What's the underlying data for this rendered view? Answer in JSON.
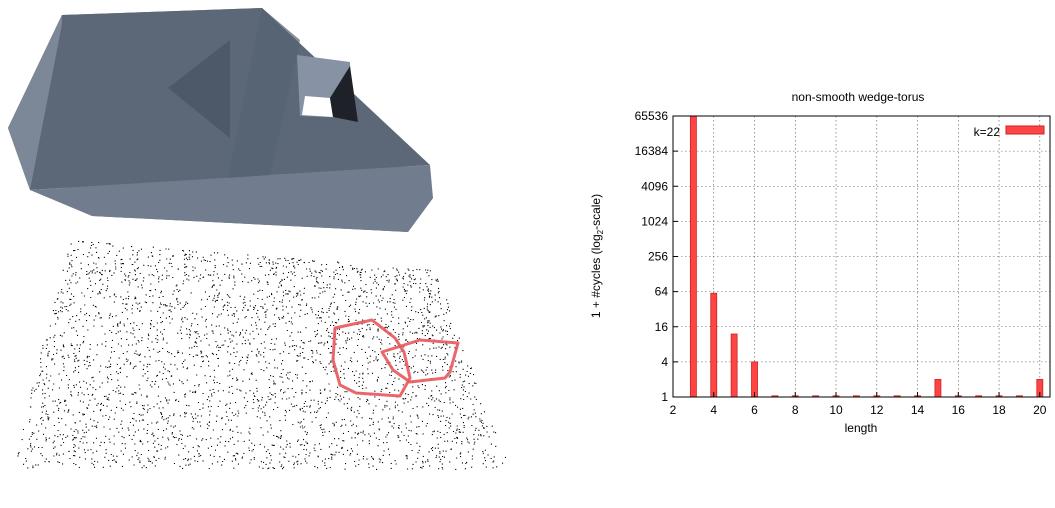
{
  "left_figure": {
    "surface_color": "#5f6b7b",
    "cycle_color": "#e8585b",
    "point_color": "#000000"
  },
  "chart_data": {
    "type": "bar",
    "title": "non-smooth wedge-torus",
    "xlabel": "length",
    "ylabel_prefix": "1 + #cycles (log",
    "ylabel_sub": "2",
    "ylabel_suffix": "-scale)",
    "x_ticks": [
      2,
      4,
      6,
      8,
      10,
      12,
      14,
      16,
      18,
      20
    ],
    "y_ticks": [
      1,
      4,
      16,
      64,
      256,
      1024,
      4096,
      16384,
      65536
    ],
    "xlim": [
      2,
      20.5
    ],
    "ylim": [
      1,
      65536
    ],
    "y_scale": "log2",
    "grid": true,
    "legend_position": "top-right",
    "bar_color": "#ff4444",
    "series": [
      {
        "name": "k=22",
        "x": [
          3,
          4,
          5,
          6,
          7,
          8,
          9,
          10,
          11,
          12,
          13,
          14,
          15,
          16,
          17,
          18,
          19,
          20
        ],
        "values": [
          65536,
          60,
          12,
          4,
          1,
          1,
          1,
          1,
          1,
          1,
          1,
          1,
          2,
          1,
          1,
          1,
          1,
          2
        ]
      }
    ]
  }
}
